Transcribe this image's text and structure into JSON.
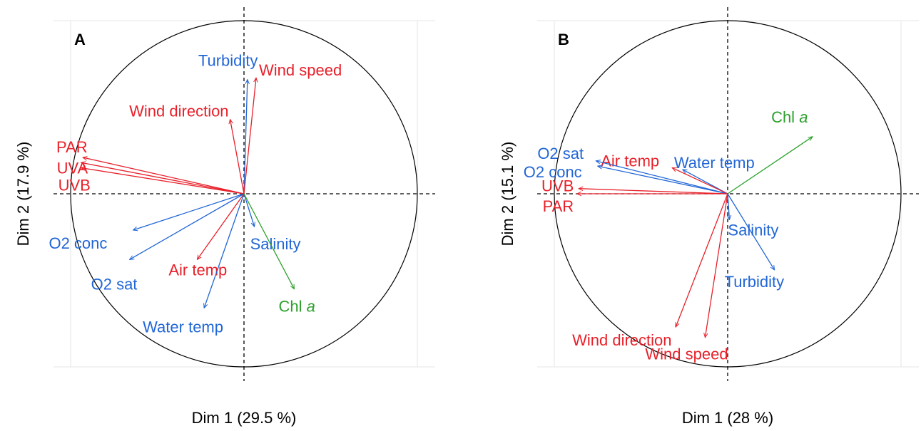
{
  "colors": {
    "weather": "#e8202a",
    "water": "#2166d6",
    "chl": "#2ca02c",
    "grid": "#e6e6e6",
    "axis": "#000000"
  },
  "chart_data": [
    {
      "type": "scatter",
      "panel": "A",
      "xlabel": "Dim 1 (29.5 %)",
      "ylabel": "Dim 2 (17.9 %)",
      "xlim": [
        -1.1,
        1.1
      ],
      "ylim": [
        -1.1,
        1.1
      ],
      "grid": true,
      "unit_circle": true,
      "vectors": [
        {
          "name": "Turbidity",
          "x": 0.02,
          "y": 0.66,
          "color": "water"
        },
        {
          "name": "Wind speed",
          "x": 0.07,
          "y": 0.67,
          "color": "weather"
        },
        {
          "name": "Wind direction",
          "x": -0.08,
          "y": 0.43,
          "color": "weather"
        },
        {
          "name": "PAR",
          "x": -0.93,
          "y": 0.21,
          "color": "weather"
        },
        {
          "name": "UVA",
          "x": -0.94,
          "y": 0.18,
          "color": "weather"
        },
        {
          "name": "UVB",
          "x": -0.94,
          "y": 0.15,
          "color": "weather"
        },
        {
          "name": "O2 conc",
          "x": -0.64,
          "y": -0.21,
          "color": "water"
        },
        {
          "name": "O2 sat",
          "x": -0.66,
          "y": -0.38,
          "color": "water"
        },
        {
          "name": "Air temp",
          "x": -0.27,
          "y": -0.38,
          "color": "weather"
        },
        {
          "name": "Water temp",
          "x": -0.23,
          "y": -0.66,
          "color": "water"
        },
        {
          "name": "Salinity",
          "x": 0.06,
          "y": -0.19,
          "color": "water"
        },
        {
          "name": "Chl a",
          "x": 0.29,
          "y": -0.55,
          "color": "chl"
        }
      ]
    },
    {
      "type": "scatter",
      "panel": "B",
      "xlabel": "Dim 1 (28 %)",
      "ylabel": "Dim 2 (15.1 %)",
      "xlim": [
        -1.1,
        1.1
      ],
      "ylim": [
        -1.1,
        1.1
      ],
      "grid": true,
      "unit_circle": true,
      "vectors": [
        {
          "name": "Chl a",
          "x": 0.49,
          "y": 0.33,
          "color": "chl"
        },
        {
          "name": "Water temp",
          "x": -0.26,
          "y": 0.14,
          "color": "water"
        },
        {
          "name": "Air temp",
          "x": -0.32,
          "y": 0.15,
          "color": "weather"
        },
        {
          "name": "O2 sat",
          "x": -0.76,
          "y": 0.19,
          "color": "water"
        },
        {
          "name": "O2 conc",
          "x": -0.75,
          "y": 0.16,
          "color": "water"
        },
        {
          "name": "UVB",
          "x": -0.86,
          "y": 0.03,
          "color": "weather"
        },
        {
          "name": "PAR",
          "x": -0.87,
          "y": 0.0,
          "color": "weather"
        },
        {
          "name": "Salinity",
          "x": 0.01,
          "y": -0.15,
          "color": "water"
        },
        {
          "name": "Turbidity",
          "x": 0.27,
          "y": -0.44,
          "color": "water"
        },
        {
          "name": "Wind direction",
          "x": -0.3,
          "y": -0.77,
          "color": "weather"
        },
        {
          "name": "Wind speed",
          "x": -0.13,
          "y": -0.83,
          "color": "weather"
        }
      ]
    }
  ]
}
